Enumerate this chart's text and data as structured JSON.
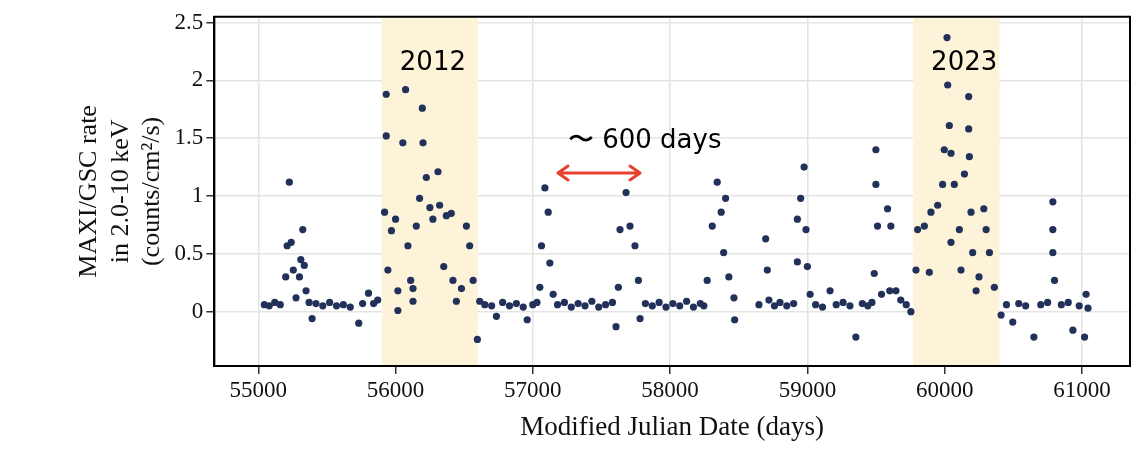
{
  "chart_data": {
    "type": "scatter",
    "xlabel": "Modified Julian Date (days)",
    "ylabel": "MAXI/GSC rate\nin 2.0-10 keV\n(counts/cm²/s)",
    "xlim": [
      54680,
      61350
    ],
    "xticks": [
      55000,
      56000,
      57000,
      58000,
      59000,
      60000,
      61000
    ],
    "ylim": [
      -0.47,
      2.55
    ],
    "yticks": [
      0,
      0.5,
      1,
      1.5,
      2,
      2.5
    ],
    "grid": true,
    "legend": false,
    "marker": "circle",
    "bands": [
      {
        "axis": "x",
        "from": 55900,
        "to": 56600,
        "label": "2012",
        "color": "#fcf3d9"
      },
      {
        "axis": "x",
        "from": 59770,
        "to": 60400,
        "label": "2023",
        "color": "#fcf3d9"
      }
    ],
    "annotations": [
      "〜 600 days"
    ],
    "series": [
      {
        "color": "#22315a",
        "x": [
          55044,
          55080,
          55120,
          55160,
          55200,
          55210,
          55226,
          55240,
          55255,
          55275,
          55300,
          55310,
          55324,
          55335,
          55348,
          55370,
          55392,
          55420,
          55470,
          55520,
          55570,
          55620,
          55670,
          55732,
          55760,
          55803,
          55840,
          55870,
          55920,
          55932,
          55932,
          55944,
          55970,
          56000,
          56017,
          56017,
          56053,
          56073,
          56090,
          56110,
          56127,
          56127,
          56151,
          56175,
          56195,
          56200,
          56224,
          56250,
          56272,
          56309,
          56321,
          56351,
          56370,
          56406,
          56418,
          56443,
          56480,
          56516,
          56540,
          56565,
          56596,
          56613,
          56650,
          56700,
          56735,
          56780,
          56830,
          56880,
          56930,
          56959,
          57000,
          57030,
          57051,
          57063,
          57088,
          57112,
          57124,
          57148,
          57180,
          57230,
          57280,
          57330,
          57380,
          57430,
          57480,
          57530,
          57580,
          57606,
          57623,
          57635,
          57679,
          57708,
          57744,
          57769,
          57781,
          57820,
          57870,
          57920,
          57970,
          58020,
          58070,
          58120,
          58170,
          58220,
          58246,
          58270,
          58307,
          58343,
          58372,
          58404,
          58390,
          58428,
          58465,
          58470,
          58647,
          58696,
          58708,
          58720,
          58760,
          58800,
          58850,
          58900,
          58927,
          58927,
          58951,
          58976,
          58990,
          59000,
          59020,
          59060,
          59110,
          59165,
          59210,
          59260,
          59310,
          59353,
          59400,
          59440,
          59470,
          59487,
          59499,
          59499,
          59511,
          59540,
          59584,
          59608,
          59600,
          59645,
          59680,
          59720,
          59754,
          59791,
          59803,
          59852,
          59888,
          59900,
          59949,
          59985,
          59997,
          60017,
          60022,
          60034,
          60046,
          60046,
          60070,
          60107,
          60119,
          60144,
          60175,
          60175,
          60180,
          60192,
          60204,
          60229,
          60250,
          60285,
          60302,
          60326,
          60362,
          60411,
          60450,
          60496,
          60540,
          60590,
          60650,
          60700,
          60750,
          60788,
          60788,
          60788,
          60800,
          60850,
          60900,
          60934,
          60980,
          61019,
          61030,
          61044
        ],
        "values": [
          0.06,
          0.05,
          0.08,
          0.06,
          0.3,
          0.57,
          1.12,
          0.6,
          0.36,
          0.12,
          0.3,
          0.45,
          0.71,
          0.4,
          0.18,
          0.08,
          -0.06,
          0.07,
          0.05,
          0.08,
          0.05,
          0.06,
          0.04,
          -0.1,
          0.07,
          0.16,
          0.07,
          0.1,
          0.86,
          1.88,
          1.52,
          0.36,
          0.7,
          0.8,
          0.01,
          0.18,
          1.46,
          1.92,
          0.57,
          0.27,
          0.09,
          0.2,
          0.74,
          0.98,
          1.76,
          1.46,
          1.16,
          0.9,
          0.8,
          1.21,
          0.92,
          0.39,
          0.83,
          0.85,
          0.27,
          0.09,
          0.2,
          0.74,
          0.57,
          0.27,
          -0.24,
          0.09,
          0.06,
          0.05,
          -0.04,
          0.08,
          0.05,
          0.07,
          0.04,
          -0.07,
          0.06,
          0.08,
          0.21,
          0.57,
          1.07,
          0.86,
          0.42,
          0.15,
          0.06,
          0.08,
          0.04,
          0.07,
          0.05,
          0.09,
          0.04,
          0.06,
          0.08,
          -0.13,
          0.21,
          0.71,
          1.03,
          0.74,
          0.57,
          0.27,
          -0.06,
          0.07,
          0.05,
          0.08,
          0.04,
          0.07,
          0.05,
          0.09,
          0.04,
          0.07,
          0.05,
          0.27,
          0.74,
          1.12,
          0.86,
          0.98,
          0.51,
          0.3,
          0.12,
          -0.07,
          0.06,
          0.63,
          0.36,
          0.1,
          0.05,
          0.08,
          0.05,
          0.07,
          0.43,
          0.8,
          0.98,
          1.25,
          0.71,
          0.39,
          0.15,
          0.06,
          0.04,
          0.18,
          0.06,
          0.08,
          0.05,
          -0.22,
          0.07,
          0.05,
          0.08,
          0.33,
          1.4,
          1.1,
          0.74,
          0.15,
          0.89,
          0.74,
          0.18,
          0.18,
          0.1,
          0.06,
          0.0,
          0.36,
          0.71,
          0.74,
          0.34,
          0.86,
          0.92,
          1.1,
          1.4,
          2.37,
          1.96,
          1.61,
          1.37,
          0.6,
          1.1,
          0.71,
          0.36,
          1.19,
          1.86,
          1.58,
          1.34,
          0.86,
          0.51,
          0.18,
          0.3,
          0.89,
          0.71,
          0.51,
          0.21,
          -0.03,
          0.06,
          -0.09,
          0.07,
          0.05,
          -0.22,
          0.06,
          0.08,
          0.95,
          0.71,
          0.51,
          0.27,
          0.06,
          0.08,
          -0.16,
          0.05,
          -0.22,
          0.15,
          0.03
        ]
      }
    ]
  }
}
